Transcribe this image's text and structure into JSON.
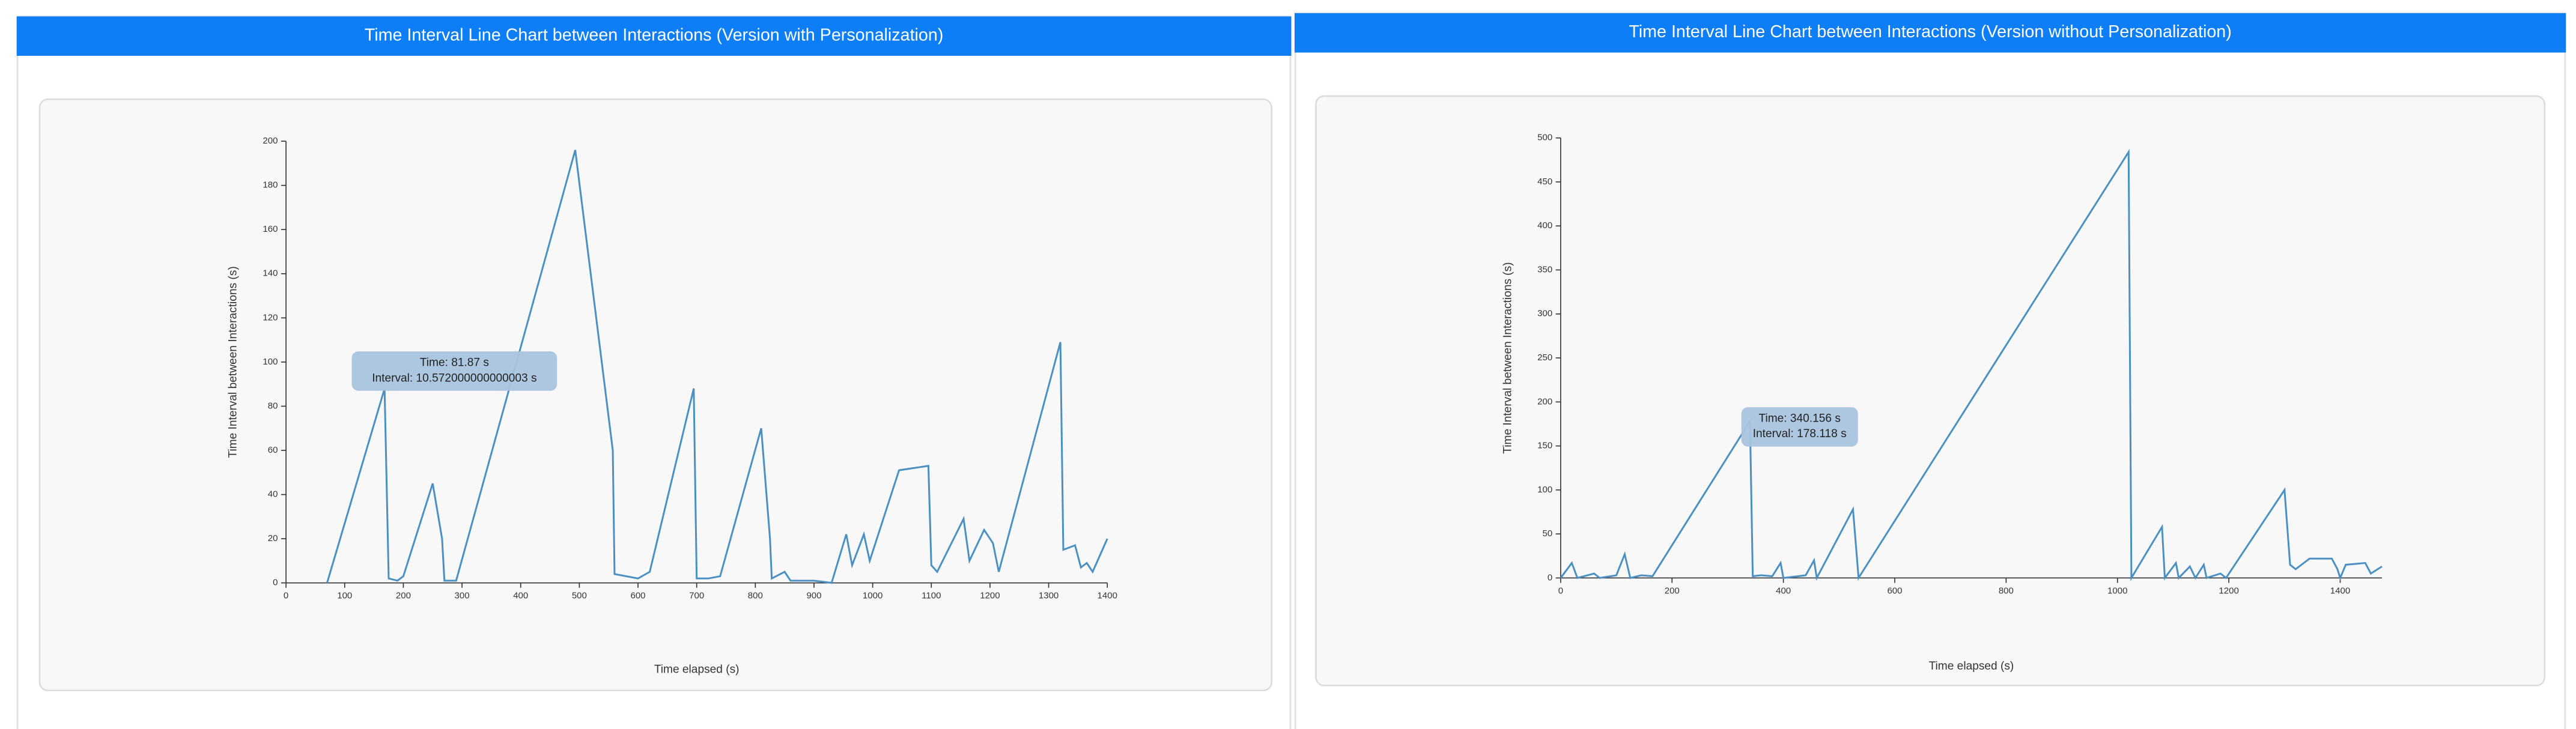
{
  "chart_data": [
    {
      "type": "line",
      "title": "Time Interval Line Chart between Interactions (Version with Personalization)",
      "x_label": "Time elapsed (s)",
      "y_label": "Time Interval between Interactions (s)",
      "annotations": [
        "Time: 81.87 s",
        "Interval: 10.572000000000003 s"
      ],
      "color": "#4a90c2",
      "x": [
        70,
        168,
        175,
        190,
        200,
        250,
        266,
        270,
        290,
        493,
        557,
        560,
        580,
        600,
        620,
        695,
        700,
        720,
        740,
        810,
        825,
        828,
        850,
        860,
        900,
        930,
        955,
        965,
        985,
        995,
        1045,
        1095,
        1100,
        1110,
        1155,
        1165,
        1190,
        1205,
        1215,
        1320,
        1325,
        1345,
        1355,
        1365,
        1375,
        1400
      ],
      "values": [
        0,
        88,
        2,
        1,
        3,
        45,
        20,
        1,
        1,
        196,
        60,
        4,
        3,
        2,
        5,
        88,
        2,
        2,
        3,
        70,
        20,
        2,
        5,
        1,
        1,
        0,
        22,
        8,
        22,
        10,
        51,
        53,
        8,
        5,
        29,
        10,
        24,
        18,
        5,
        109,
        15,
        17,
        7,
        9,
        5,
        20
      ],
      "xlim": [
        0,
        1400
      ],
      "ylim": [
        0,
        200
      ],
      "xticks": [
        0,
        100,
        200,
        300,
        400,
        500,
        600,
        700,
        800,
        900,
        1000,
        1100,
        1200,
        1300,
        1400
      ],
      "yticks": [
        0,
        20,
        40,
        60,
        80,
        100,
        120,
        140,
        160,
        180,
        200
      ]
    },
    {
      "type": "line",
      "title": "Time Interval Line Chart between Interactions (Version without Personalization)",
      "x_label": "Time elapsed (s)",
      "y_label": "Time Interval between Interactions (s)",
      "annotations": [
        "Time: 340.156 s",
        "Interval: 178.118 s"
      ],
      "color": "#4a90c2",
      "x": [
        0,
        20,
        30,
        60,
        70,
        100,
        115,
        125,
        145,
        165,
        340,
        345,
        360,
        380,
        395,
        400,
        440,
        455,
        460,
        525,
        535,
        1020,
        1025,
        1080,
        1085,
        1105,
        1110,
        1130,
        1140,
        1155,
        1160,
        1185,
        1195,
        1300,
        1310,
        1320,
        1345,
        1385,
        1395,
        1400,
        1410,
        1445,
        1455,
        1475
      ],
      "values": [
        0,
        17,
        0,
        5,
        0,
        3,
        27,
        0,
        3,
        2,
        178,
        2,
        3,
        2,
        17,
        0,
        3,
        20,
        0,
        78,
        0,
        484,
        0,
        58,
        0,
        17,
        0,
        13,
        0,
        15,
        0,
        5,
        0,
        100,
        15,
        10,
        22,
        22,
        10,
        0,
        15,
        17,
        5,
        13
      ],
      "xlim": [
        0,
        1475
      ],
      "ylim": [
        0,
        500
      ],
      "xticks": [
        0,
        200,
        400,
        600,
        800,
        1000,
        1200,
        1400
      ],
      "yticks": [
        0,
        50,
        100,
        150,
        200,
        250,
        300,
        350,
        400,
        450,
        500
      ]
    }
  ]
}
